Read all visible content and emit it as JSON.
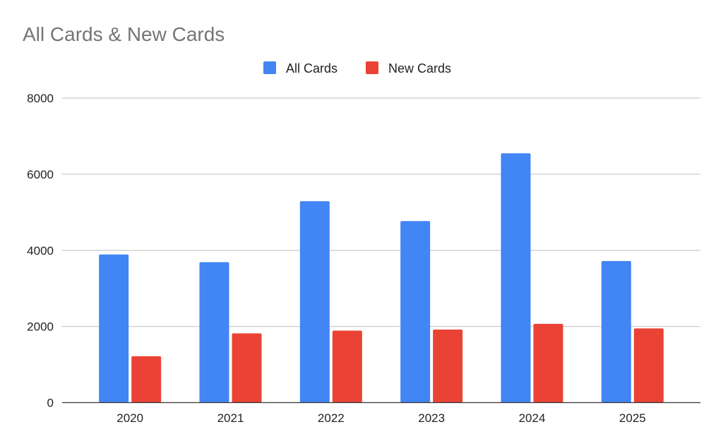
{
  "chart_data": {
    "type": "bar",
    "title": "All Cards & New Cards",
    "categories": [
      "2020",
      "2021",
      "2022",
      "2023",
      "2024",
      "2025"
    ],
    "series": [
      {
        "name": "All Cards",
        "color": "#4285f4",
        "values": [
          3890,
          3690,
          5290,
          4770,
          6550,
          3720
        ]
      },
      {
        "name": "New Cards",
        "color": "#ea4335",
        "values": [
          1220,
          1820,
          1890,
          1920,
          2070,
          1950
        ]
      }
    ],
    "ylim": [
      0,
      8000
    ],
    "yticks": [
      "0",
      "2000",
      "4000",
      "6000",
      "8000"
    ],
    "grid": true,
    "legend": "top",
    "xlabel": "",
    "ylabel": ""
  }
}
